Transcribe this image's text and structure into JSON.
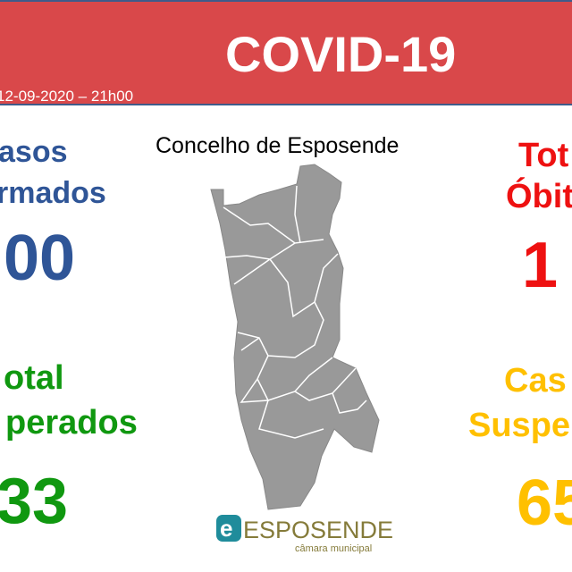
{
  "header": {
    "title": "COVID-19",
    "date": "12-09-2020 – 21h00",
    "color": "#d9484a"
  },
  "map_title": "Concelho de Esposende",
  "stats": {
    "confirmed": {
      "line1": "asos",
      "line2": "rmados",
      "value": "00",
      "color": "#2f5597"
    },
    "recovered": {
      "line1": "otal",
      "line2": "perados",
      "value": "33",
      "color": "#109810"
    },
    "deaths": {
      "line1": "Tot",
      "line2": "Óbit",
      "value": "1",
      "color": "#ee1111"
    },
    "suspected": {
      "line1": "Cas",
      "line2": "Suspe",
      "value": "65",
      "color": "#ffc000"
    }
  },
  "logo": {
    "name": "ESPOSENDE",
    "sub": "câmara municipal"
  }
}
